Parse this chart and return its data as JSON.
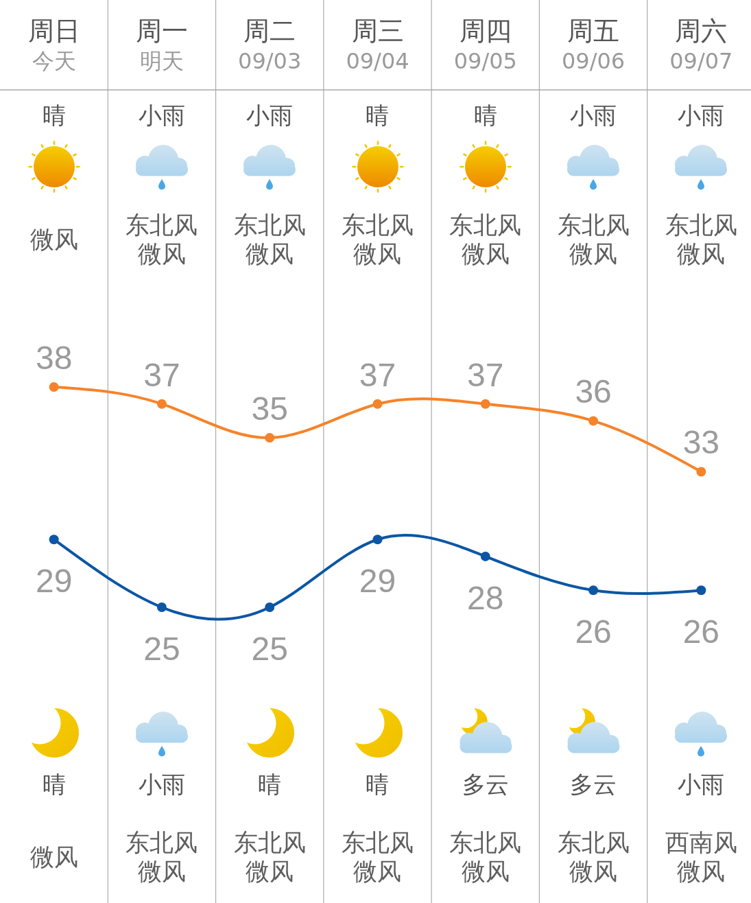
{
  "chart_data": {
    "type": "line",
    "categories": [
      "周日",
      "周一",
      "周二",
      "周三",
      "周四",
      "周五",
      "周六"
    ],
    "series": [
      {
        "color": "#f5832a",
        "values": [
          38,
          37,
          35,
          37,
          37,
          36,
          33
        ]
      },
      {
        "color": "#0c56a4",
        "values": [
          29,
          25,
          25,
          29,
          28,
          26,
          26
        ]
      }
    ],
    "data_labels": true,
    "marker": "circle",
    "line_style": "solid",
    "grid": "x",
    "tick_labels": "x",
    "annotations": [
      "今天",
      "明天",
      "09/03",
      "09/04",
      "09/05",
      "09/06",
      "09/07",
      "晴",
      "小雨",
      "小雨",
      "晴",
      "晴",
      "小雨",
      "小雨",
      "微风",
      "东北风微风",
      "东北风微风",
      "东北风微风",
      "东北风微风",
      "东北风微风",
      "东北风微风",
      "晴",
      "小雨",
      "晴",
      "晴",
      "多云",
      "多云",
      "小雨",
      "微风",
      "东北风微风",
      "东北风微风",
      "东北风微风",
      "东北风微风",
      "东北风微风",
      "西南风微风"
    ]
  }
}
